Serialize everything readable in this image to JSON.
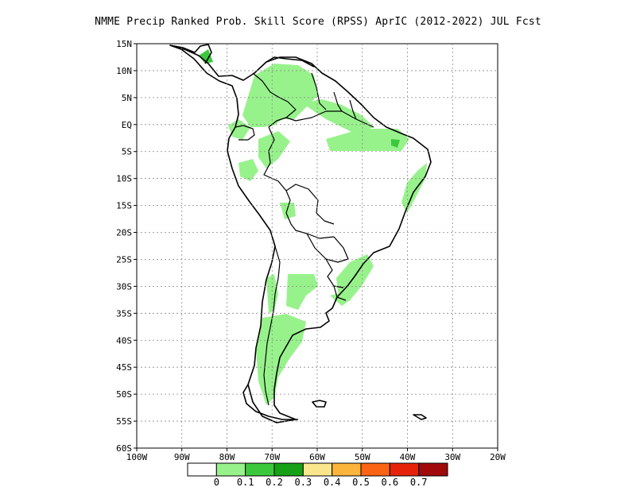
{
  "title": "NMME Precip Ranked Prob. Skill Score (RPSS) AprIC (2012-2022) JUL Fcst",
  "axes": {
    "lat_labels": [
      "15N",
      "10N",
      "5N",
      "EQ",
      "5S",
      "10S",
      "15S",
      "20S",
      "25S",
      "30S",
      "35S",
      "40S",
      "45S",
      "50S",
      "55S",
      "60S"
    ],
    "lat_values": [
      15,
      10,
      5,
      0,
      -5,
      -10,
      -15,
      -20,
      -25,
      -30,
      -35,
      -40,
      -45,
      -50,
      -55,
      -60
    ],
    "lon_labels": [
      "100W",
      "90W",
      "80W",
      "70W",
      "60W",
      "50W",
      "40W",
      "30W",
      "20W"
    ],
    "lon_values": [
      -100,
      -90,
      -80,
      -70,
      -60,
      -50,
      -40,
      -30,
      -20
    ],
    "lat_range": [
      -60,
      15
    ],
    "lon_range": [
      -100,
      -20
    ],
    "grid": "dotted"
  },
  "colorbar": {
    "labels": [
      "0",
      "0.1",
      "0.2",
      "0.3",
      "0.4",
      "0.5",
      "0.6",
      "0.7"
    ],
    "colors": [
      "#ffffff",
      "#98f28c",
      "#3cc83c",
      "#15a015",
      "#fae68c",
      "#fbb43c",
      "#fa6414",
      "#e6230a",
      "#a00a0a"
    ]
  },
  "colors": {
    "skill_light": "#98f28c",
    "skill_medium": "#3cc83c",
    "coast": "#000000"
  }
}
